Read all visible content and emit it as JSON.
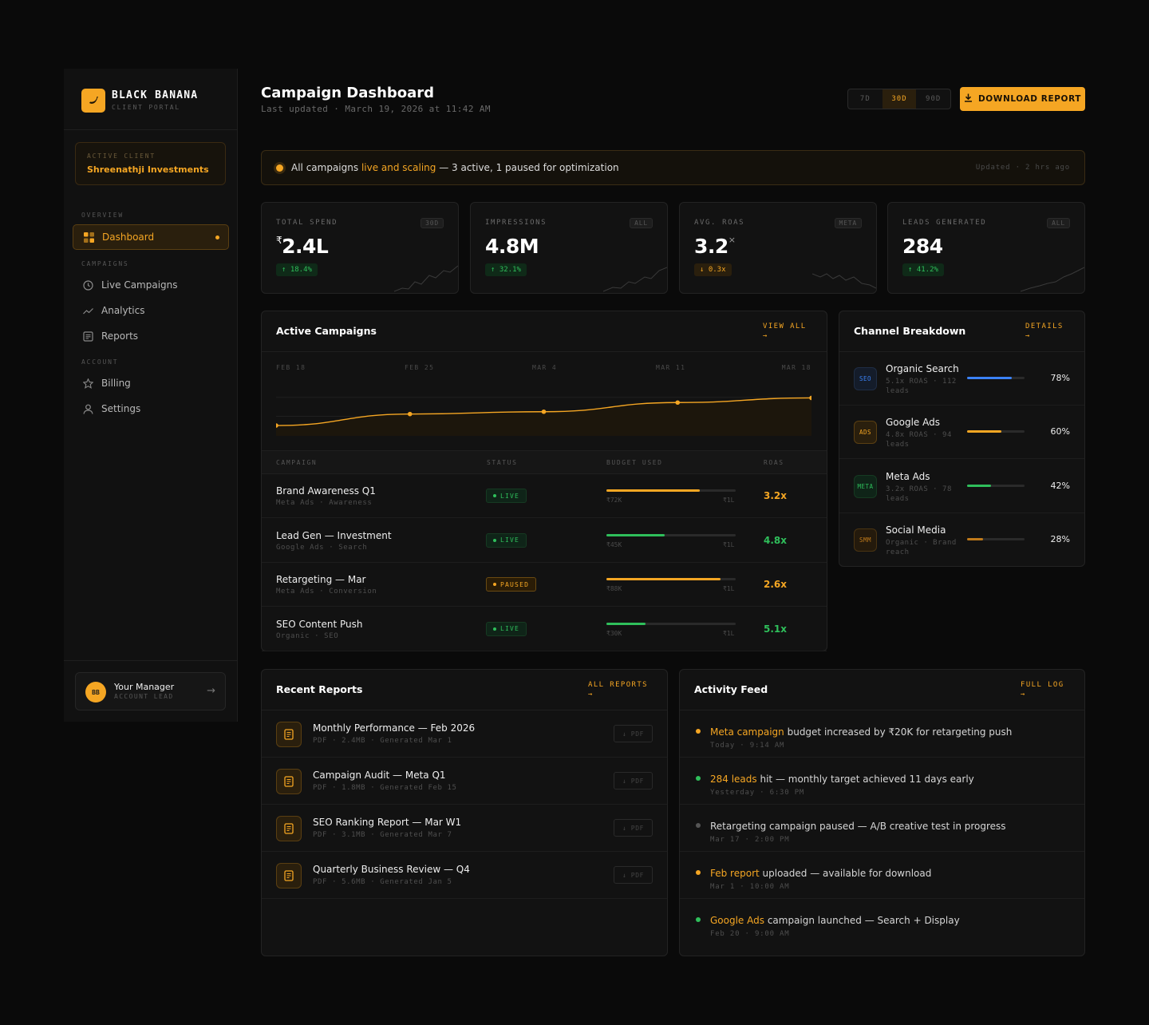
{
  "brand": {
    "name": "BLACK BANANA",
    "subtitle": "CLIENT PORTAL"
  },
  "client": {
    "label": "ACTIVE CLIENT",
    "name": "Shreenathji Investments"
  },
  "nav": {
    "overview_label": "OVERVIEW",
    "campaigns_label": "CAMPAIGNS",
    "account_label": "ACCOUNT",
    "items": [
      {
        "label": "Dashboard",
        "icon": "grid-icon",
        "active": true
      },
      {
        "label": "Live Campaigns",
        "icon": "clock-icon"
      },
      {
        "label": "Analytics",
        "icon": "trend-icon"
      },
      {
        "label": "Reports",
        "icon": "document-icon"
      },
      {
        "label": "Billing",
        "icon": "star-icon"
      },
      {
        "label": "Settings",
        "icon": "user-icon"
      }
    ]
  },
  "manager": {
    "initials": "BB",
    "name": "Your Manager",
    "role": "ACCOUNT LEAD"
  },
  "header": {
    "title": "Campaign Dashboard",
    "subtitle": "Last updated · March 19, 2026 at 11:42 AM",
    "ranges": [
      "7D",
      "30D",
      "90D"
    ],
    "active_range": "30D",
    "download_label": "DOWNLOAD REPORT"
  },
  "banner": {
    "prefix": "All campaigns ",
    "highlight": "live and scaling",
    "suffix": " — 3 active, 1 paused for optimization",
    "updated": "Updated · 2 hrs ago"
  },
  "kpis": [
    {
      "label": "TOTAL SPEND",
      "tag": "30D",
      "currency": "₹",
      "value": "2.4L",
      "delta": "↑ 18.4%",
      "dir": "up"
    },
    {
      "label": "IMPRESSIONS",
      "tag": "ALL",
      "currency": "",
      "value": "4.8M",
      "delta": "↑ 32.1%",
      "dir": "up"
    },
    {
      "label": "AVG. ROAS",
      "tag": "META",
      "currency": "",
      "value": "3.2",
      "unit": "×",
      "delta": "↓ 0.3x",
      "dir": "down"
    },
    {
      "label": "LEADS GENERATED",
      "tag": "ALL",
      "currency": "",
      "value": "284",
      "delta": "↑ 41.2%",
      "dir": "up"
    }
  ],
  "campaigns": {
    "title": "Active Campaigns",
    "link": "VIEW ALL",
    "link_arrow": "→",
    "chart_data": {
      "type": "line",
      "x": [
        "FEB 18",
        "FEB 25",
        "MAR 4",
        "MAR 11",
        "MAR 18"
      ],
      "values": [
        18,
        38,
        42,
        58,
        66
      ],
      "ylim": [
        0,
        100
      ]
    },
    "columns": [
      "CAMPAIGN",
      "STATUS",
      "BUDGET USED",
      "ROAS"
    ],
    "rows": [
      {
        "name": "Brand Awareness Q1",
        "sub": "Meta Ads · Awareness",
        "status": "LIVE",
        "used": "₹72K",
        "cap": "₹1L",
        "fraction": 0.72,
        "roas": "3.2x",
        "color": "#f5a623"
      },
      {
        "name": "Lead Gen — Investment",
        "sub": "Google Ads · Search",
        "status": "LIVE",
        "used": "₹45K",
        "cap": "₹1L",
        "fraction": 0.45,
        "roas": "4.8x",
        "color": "#2fbf5b"
      },
      {
        "name": "Retargeting — Mar",
        "sub": "Meta Ads · Conversion",
        "status": "PAUSED",
        "used": "₹88K",
        "cap": "₹1L",
        "fraction": 0.88,
        "roas": "2.6x",
        "color": "#f5a623"
      },
      {
        "name": "SEO Content Push",
        "sub": "Organic · SEO",
        "status": "LIVE",
        "used": "₹30K",
        "cap": "₹1L",
        "fraction": 0.3,
        "roas": "5.1x",
        "color": "#2fbf5b"
      }
    ]
  },
  "channels": {
    "title": "Channel Breakdown",
    "link": "DETAILS",
    "link_arrow": "→",
    "items": [
      {
        "code": "SEO",
        "name": "Organic Search",
        "sub": "5.1x ROAS · 112 leads",
        "pct": "78%",
        "fraction": 0.78,
        "color": "#3b82f6",
        "bg": "#141c2a",
        "border": "#1f2d44"
      },
      {
        "code": "ADS",
        "name": "Google Ads",
        "sub": "4.8x ROAS · 94 leads",
        "pct": "60%",
        "fraction": 0.6,
        "color": "#f5a623",
        "bg": "#2a1f0d",
        "border": "#5a3f12"
      },
      {
        "code": "META",
        "name": "Meta Ads",
        "sub": "3.2x ROAS · 78 leads",
        "pct": "42%",
        "fraction": 0.42,
        "color": "#2fbf5b",
        "bg": "#0f2418",
        "border": "#163a22"
      },
      {
        "code": "SMM",
        "name": "Social Media",
        "sub": "Organic · Brand reach",
        "pct": "28%",
        "fraction": 0.28,
        "color": "#c07a1a",
        "bg": "#241a0c",
        "border": "#4a3412"
      }
    ]
  },
  "reports": {
    "title": "Recent Reports",
    "link": "ALL REPORTS",
    "link_arrow": "→",
    "items": [
      {
        "name": "Monthly Performance — Feb 2026",
        "sub": "PDF · 2.4MB · Generated Mar 1",
        "btn": "↓ PDF"
      },
      {
        "name": "Campaign Audit — Meta Q1",
        "sub": "PDF · 1.8MB · Generated Feb 15",
        "btn": "↓ PDF"
      },
      {
        "name": "SEO Ranking Report — Mar W1",
        "sub": "PDF · 3.1MB · Generated Mar 7",
        "btn": "↓ PDF"
      },
      {
        "name": "Quarterly Business Review — Q4",
        "sub": "PDF · 5.6MB · Generated Jan 5",
        "btn": "↓ PDF"
      }
    ]
  },
  "activity": {
    "title": "Activity Feed",
    "link": "FULL LOG",
    "link_arrow": "→",
    "items": [
      {
        "highlight": "Meta campaign",
        "text": " budget increased by ₹20K for retargeting push",
        "time": "Today · 9:14 AM",
        "dot": "#f5a623"
      },
      {
        "highlight": "284 leads",
        "text": " hit — monthly target achieved 11 days early",
        "time": "Yesterday · 6:30 PM",
        "dot": "#2fbf5b"
      },
      {
        "highlight": "",
        "text": "Retargeting campaign paused — A/B creative test in progress",
        "time": "Mar 17 · 2:00 PM",
        "dot": "#555555"
      },
      {
        "highlight": "Feb report",
        "text": " uploaded — available for download",
        "time": "Mar 1 · 10:00 AM",
        "dot": "#f5a623"
      },
      {
        "highlight": "Google Ads",
        "text": " campaign launched — Search + Display",
        "time": "Feb 20 · 9:00 AM",
        "dot": "#2fbf5b"
      }
    ]
  },
  "colors": {
    "accent": "#f5a623",
    "success": "#2fbf5b",
    "background": "#0a0a0a",
    "panel": "#121212"
  }
}
